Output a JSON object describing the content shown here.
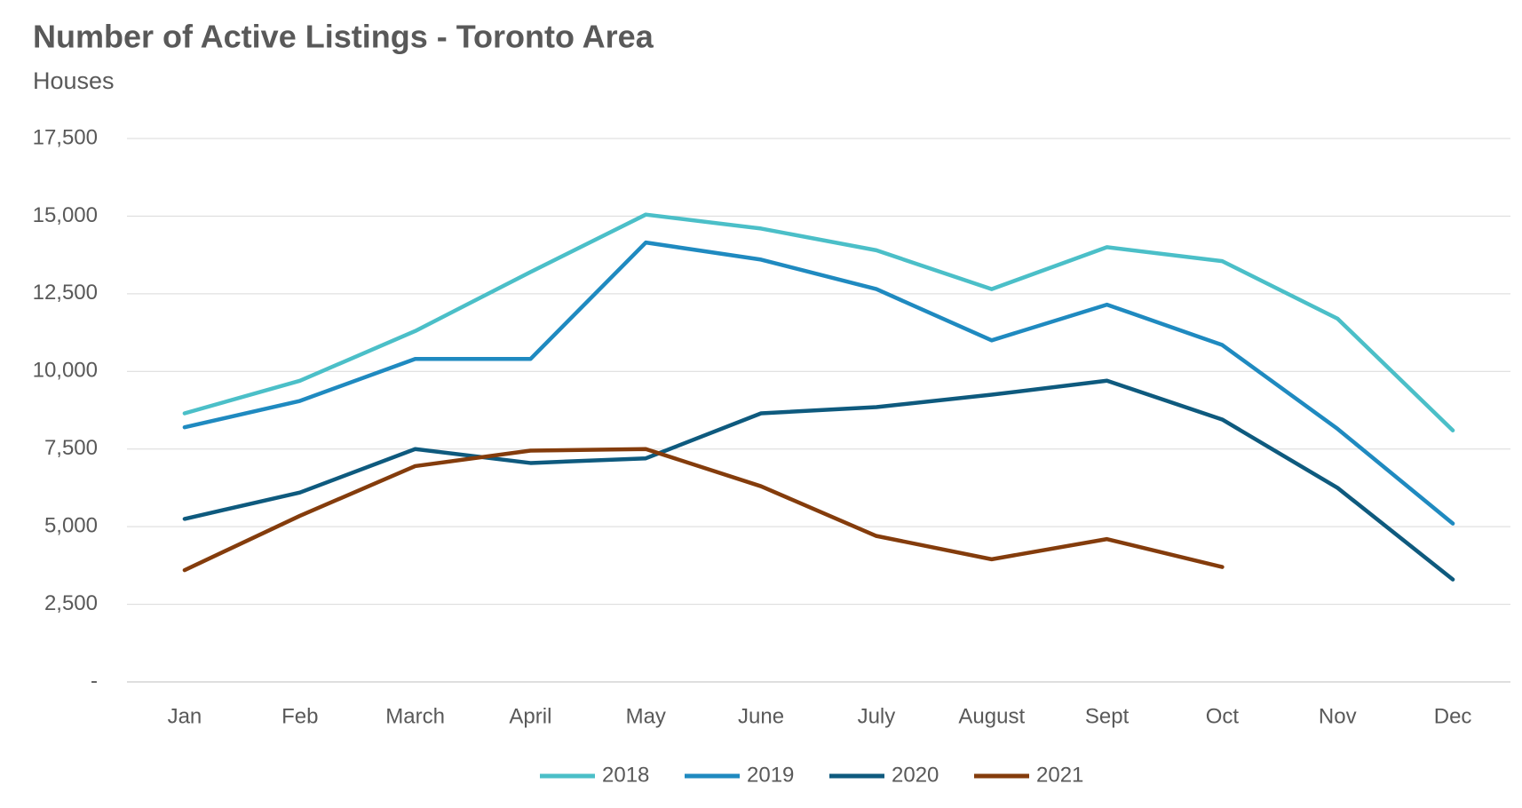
{
  "chart_data": {
    "type": "line",
    "title": "Number of Active Listings - Toronto Area",
    "subtitle": "Houses",
    "categories": [
      "Jan",
      "Feb",
      "March",
      "April",
      "May",
      "June",
      "July",
      "August",
      "Sept",
      "Oct",
      "Nov",
      "Dec"
    ],
    "series": [
      {
        "name": "2018",
        "color": "#4bbfc8",
        "values": [
          8650,
          9700,
          11300,
          13200,
          15050,
          14600,
          13900,
          12650,
          14000,
          13550,
          11700,
          8100
        ]
      },
      {
        "name": "2019",
        "color": "#1f8ac0",
        "values": [
          8200,
          9050,
          10400,
          10400,
          14150,
          13600,
          12650,
          11000,
          12150,
          10850,
          8150,
          5100
        ]
      },
      {
        "name": "2020",
        "color": "#0e5a7e",
        "values": [
          5250,
          6100,
          7500,
          7050,
          7200,
          8650,
          8850,
          9250,
          9700,
          8450,
          6250,
          3300
        ]
      },
      {
        "name": "2021",
        "color": "#843c0c",
        "values": [
          3600,
          5350,
          6950,
          7450,
          7500,
          6300,
          4700,
          3950,
          4600,
          3700,
          null,
          null
        ]
      }
    ],
    "ylim": [
      0,
      17500
    ],
    "yticks": [
      {
        "value": 0,
        "label": "-"
      },
      {
        "value": 2500,
        "label": "2,500"
      },
      {
        "value": 5000,
        "label": "5,000"
      },
      {
        "value": 7500,
        "label": "7,500"
      },
      {
        "value": 10000,
        "label": "10,000"
      },
      {
        "value": 12500,
        "label": "12,500"
      },
      {
        "value": 15000,
        "label": "15,000"
      },
      {
        "value": 17500,
        "label": "17,500"
      }
    ],
    "grid": true,
    "legend": "bottom"
  }
}
